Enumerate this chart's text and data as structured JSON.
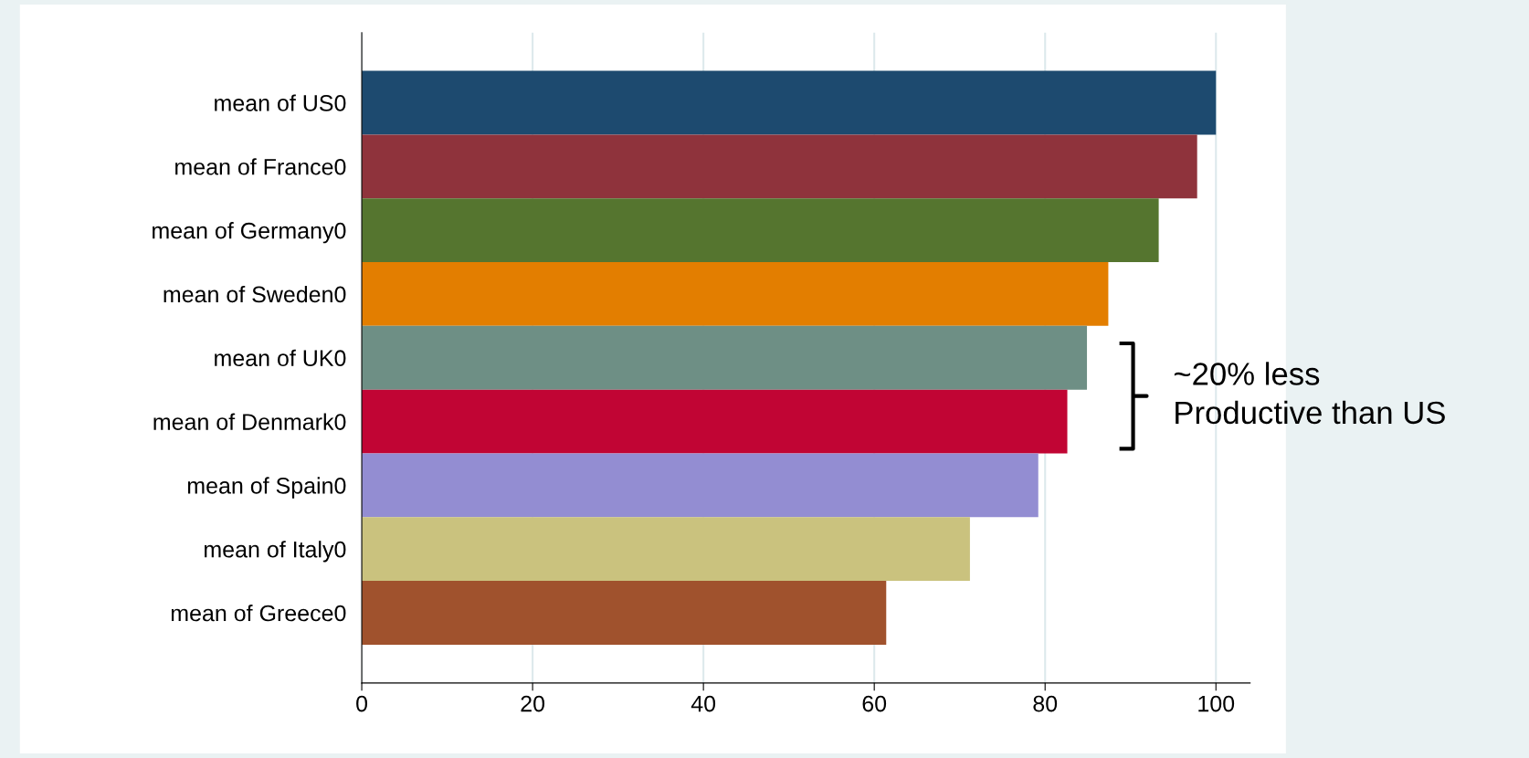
{
  "chart_data": {
    "type": "bar",
    "orientation": "horizontal",
    "categories": [
      "mean of US0",
      "mean of France0",
      "mean of Germany0",
      "mean of Sweden0",
      "mean of UK0",
      "mean of Denmark0",
      "mean of Spain0",
      "mean of Italy0",
      "mean of Greece0"
    ],
    "values": [
      100,
      97.8,
      93.3,
      87.4,
      84.9,
      82.6,
      79.2,
      71.2,
      61.4
    ],
    "colors": [
      "#1d4a6f",
      "#8f333c",
      "#55752f",
      "#e37e00",
      "#6e8f85",
      "#c10534",
      "#938dd2",
      "#cac27e",
      "#a0522d"
    ],
    "xlim": [
      0,
      104
    ],
    "xticks": [
      0,
      20,
      40,
      60,
      80,
      100
    ],
    "grid": "x",
    "annotations": [
      "~20% less\nProductive than US"
    ]
  }
}
